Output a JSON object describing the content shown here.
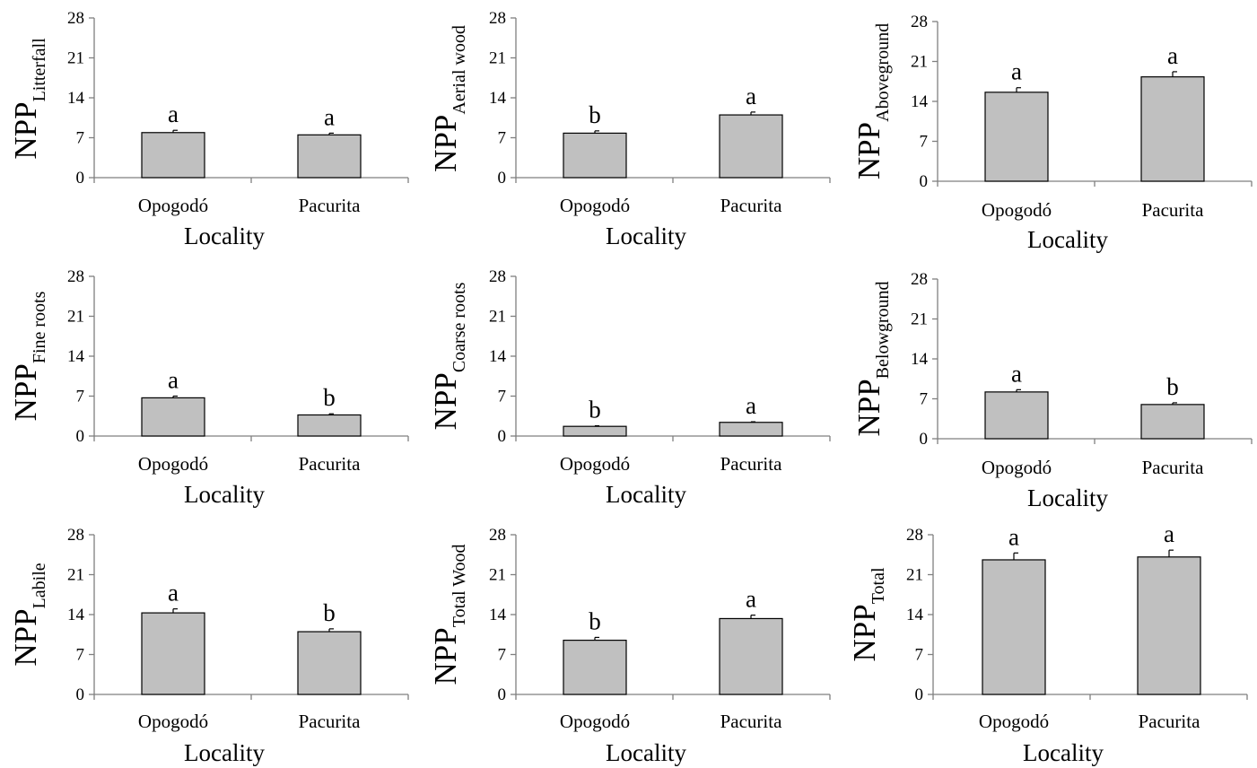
{
  "chart_data": [
    {
      "type": "bar",
      "ylabel_main": "NPP",
      "ylabel_sub": "Litterfall",
      "xlabel": "Locality",
      "categories": [
        "Opogodó",
        "Pacurita"
      ],
      "values": [
        7.9,
        7.5
      ],
      "errors": [
        0.4,
        0.3
      ],
      "significance": [
        "a",
        "a"
      ],
      "ylim": [
        0,
        28
      ],
      "yticks": [
        "0",
        "7",
        "14",
        "21",
        "28"
      ]
    },
    {
      "type": "bar",
      "ylabel_main": "NPP",
      "ylabel_sub": "Aerial wood",
      "xlabel": "Locality",
      "categories": [
        "Opogodó",
        "Pacurita"
      ],
      "values": [
        7.8,
        11.0
      ],
      "errors": [
        0.4,
        0.5
      ],
      "significance": [
        "b",
        "a"
      ],
      "ylim": [
        0,
        28
      ],
      "yticks": [
        "0",
        "7",
        "14",
        "21",
        "28"
      ]
    },
    {
      "type": "bar",
      "ylabel_main": "NPP",
      "ylabel_sub": "Aboveground",
      "xlabel": "Locality",
      "categories": [
        "Opogodó",
        "Pacurita"
      ],
      "values": [
        15.6,
        18.3
      ],
      "errors": [
        0.8,
        0.9
      ],
      "significance": [
        "a",
        "a"
      ],
      "ylim": [
        0,
        28
      ],
      "yticks": [
        "0",
        "7",
        "14",
        "21",
        "28"
      ]
    },
    {
      "type": "bar",
      "ylabel_main": "NPP",
      "ylabel_sub": "Fine roots",
      "xlabel": "Locality",
      "categories": [
        "Opogodó",
        "Pacurita"
      ],
      "values": [
        6.7,
        3.7
      ],
      "errors": [
        0.3,
        0.2
      ],
      "significance": [
        "a",
        "b"
      ],
      "ylim": [
        0,
        28
      ],
      "yticks": [
        "0",
        "7",
        "14",
        "21",
        "28"
      ]
    },
    {
      "type": "bar",
      "ylabel_main": "NPP",
      "ylabel_sub": "Coarse  roots",
      "xlabel": "Locality",
      "categories": [
        "Opogodó",
        "Pacurita"
      ],
      "values": [
        1.7,
        2.4
      ],
      "errors": [
        0.1,
        0.1
      ],
      "significance": [
        "b",
        "a"
      ],
      "ylim": [
        0,
        28
      ],
      "yticks": [
        "0",
        "7",
        "14",
        "21",
        "28"
      ]
    },
    {
      "type": "bar",
      "ylabel_main": "NPP",
      "ylabel_sub": "Belowground",
      "xlabel": "Locality",
      "categories": [
        "Opogodó",
        "Pacurita"
      ],
      "values": [
        8.2,
        6.0
      ],
      "errors": [
        0.4,
        0.3
      ],
      "significance": [
        "a",
        "b"
      ],
      "ylim": [
        0,
        28
      ],
      "yticks": [
        "0",
        "7",
        "14",
        "21",
        "28"
      ]
    },
    {
      "type": "bar",
      "ylabel_main": "NPP",
      "ylabel_sub": "Labile",
      "xlabel": "Locality",
      "categories": [
        "Opogodó",
        "Pacurita"
      ],
      "values": [
        14.3,
        11.0
      ],
      "errors": [
        0.7,
        0.5
      ],
      "significance": [
        "a",
        "b"
      ],
      "ylim": [
        0,
        28
      ],
      "yticks": [
        "0",
        "7",
        "14",
        "21",
        "28"
      ]
    },
    {
      "type": "bar",
      "ylabel_main": "NPP",
      "ylabel_sub": "Total Wood",
      "xlabel": "Locality",
      "categories": [
        "Opogodó",
        "Pacurita"
      ],
      "values": [
        9.5,
        13.3
      ],
      "errors": [
        0.5,
        0.6
      ],
      "significance": [
        "b",
        "a"
      ],
      "ylim": [
        0,
        28
      ],
      "yticks": [
        "0",
        "7",
        "14",
        "21",
        "28"
      ]
    },
    {
      "type": "bar",
      "ylabel_main": "NPP",
      "ylabel_sub": "Total",
      "xlabel": "Locality",
      "categories": [
        "Opogodó",
        "Pacurita"
      ],
      "values": [
        23.6,
        24.1
      ],
      "errors": [
        1.2,
        1.2
      ],
      "significance": [
        "a",
        "a"
      ],
      "ylim": [
        0,
        28
      ],
      "yticks": [
        "0",
        "7",
        "14",
        "21",
        "28"
      ]
    }
  ]
}
